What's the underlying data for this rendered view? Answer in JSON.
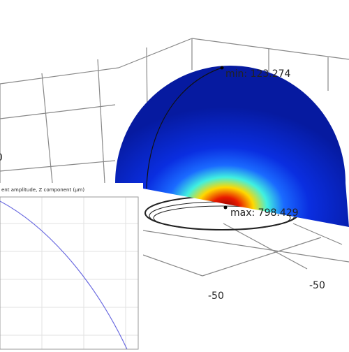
{
  "plot3d": {
    "annotations": [
      "min: 123.274",
      "max: 798.429"
    ],
    "axis_labels": [
      "-50",
      "-50",
      "0"
    ]
  },
  "inset": {
    "title": "ent amplitude, Z component (µm)"
  }
}
